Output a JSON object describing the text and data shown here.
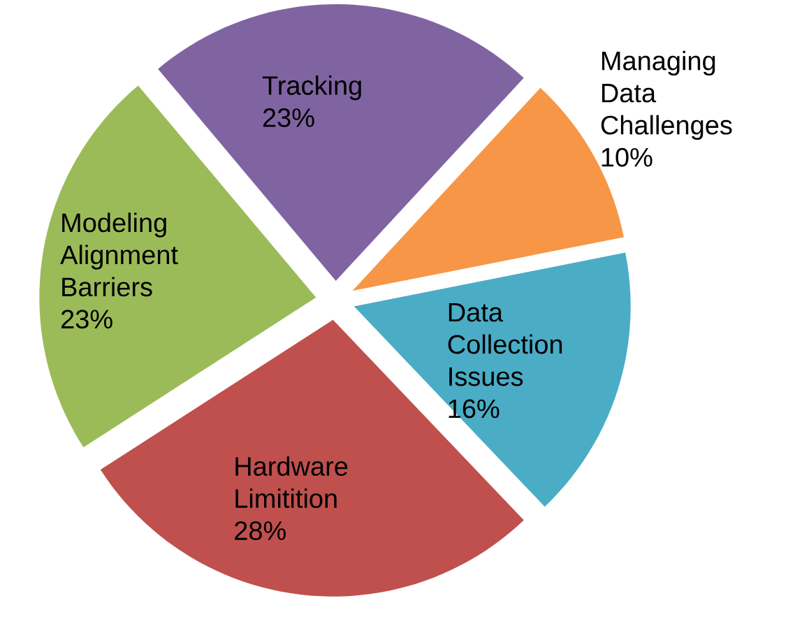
{
  "chart_data": {
    "type": "pie",
    "categories": [
      "Tracking",
      "Managing Data Challenges",
      "Data Collection Issues",
      "Hardware Limitition",
      "Modeling Alignment Barriers"
    ],
    "values": [
      23,
      10,
      16,
      28,
      23
    ],
    "colors": [
      "#8064a2",
      "#f79646",
      "#4bacc6",
      "#c0504d",
      "#9bbb59"
    ],
    "value_labels": [
      "23%",
      "10%",
      "16%",
      "28%",
      "23%"
    ]
  }
}
